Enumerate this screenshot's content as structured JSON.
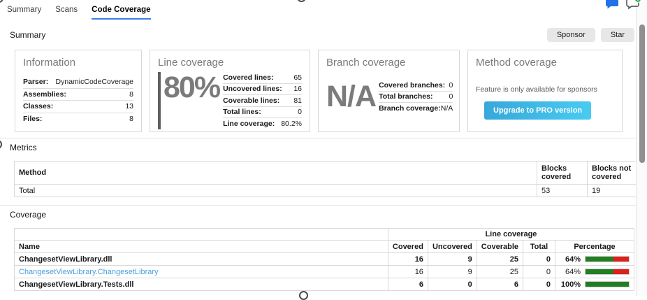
{
  "tabs": {
    "items": [
      {
        "label": "Summary",
        "active": false
      },
      {
        "label": "Scans",
        "active": false
      },
      {
        "label": "Code Coverage",
        "active": true
      }
    ]
  },
  "header_icons": {
    "comment": "chat-bubble-icon",
    "add_comment": "add-comment-bubble-icon"
  },
  "summary": {
    "title": "Summary",
    "sponsor_label": "Sponsor",
    "star_label": "Star",
    "cards": {
      "information": {
        "title": "Information",
        "rows": [
          {
            "label": "Parser:",
            "value": "DynamicCodeCoverage"
          },
          {
            "label": "Assemblies:",
            "value": "8"
          },
          {
            "label": "Classes:",
            "value": "13"
          },
          {
            "label": "Files:",
            "value": "8"
          }
        ]
      },
      "line_coverage": {
        "title": "Line coverage",
        "big_value": "80%",
        "rows": [
          {
            "label": "Covered lines:",
            "value": "65"
          },
          {
            "label": "Uncovered lines:",
            "value": "16"
          },
          {
            "label": "Coverable lines:",
            "value": "81"
          },
          {
            "label": "Total lines:",
            "value": "0"
          },
          {
            "label": "Line coverage:",
            "value": "80.2%"
          }
        ]
      },
      "branch_coverage": {
        "title": "Branch coverage",
        "big_value": "N/A",
        "rows": [
          {
            "label": "Covered branches:",
            "value": "0"
          },
          {
            "label": "Total branches:",
            "value": "0"
          },
          {
            "label": "Branch coverage:",
            "value": "N/A"
          }
        ]
      },
      "method_coverage": {
        "title": "Method coverage",
        "note": "Feature is only available for sponsors",
        "button_label": "Upgrade to PRO version"
      }
    }
  },
  "metrics": {
    "title": "Metrics",
    "table": {
      "headers": [
        "Method",
        "Blocks covered",
        "Blocks not covered"
      ],
      "rows": [
        {
          "method": "Total",
          "blocks_covered": "53",
          "blocks_not_covered": "19"
        }
      ]
    }
  },
  "coverage": {
    "title": "Coverage",
    "table": {
      "group_header": "Line coverage",
      "headers": [
        "Name",
        "Covered",
        "Uncovered",
        "Coverable",
        "Total",
        "Percentage"
      ],
      "rows": [
        {
          "name": "ChangesetViewLibrary.dll",
          "covered": "16",
          "uncovered": "9",
          "coverable": "25",
          "total": "0",
          "percentage": "64%",
          "pct": 64
        },
        {
          "name": "ChangesetViewLibrary.ChangesetLibrary",
          "covered": "16",
          "uncovered": "9",
          "coverable": "25",
          "total": "0",
          "percentage": "64%",
          "pct": 64
        },
        {
          "name": "ChangesetViewLibrary.Tests.dll",
          "covered": "6",
          "uncovered": "0",
          "coverable": "6",
          "total": "0",
          "percentage": "100%",
          "pct": 100
        }
      ]
    }
  },
  "colors": {
    "tab_underline": "#3b7de8",
    "link": "#4a9fdf",
    "bar_covered_green": "#237d23",
    "bar_uncovered_red": "#e11e1e",
    "pro_button_gradient_start": "#37a8da",
    "pro_button_gradient_end": "#49cbf1",
    "comment_icon_blue": "#2270e8",
    "add_badge_green": "#2ea44f"
  }
}
